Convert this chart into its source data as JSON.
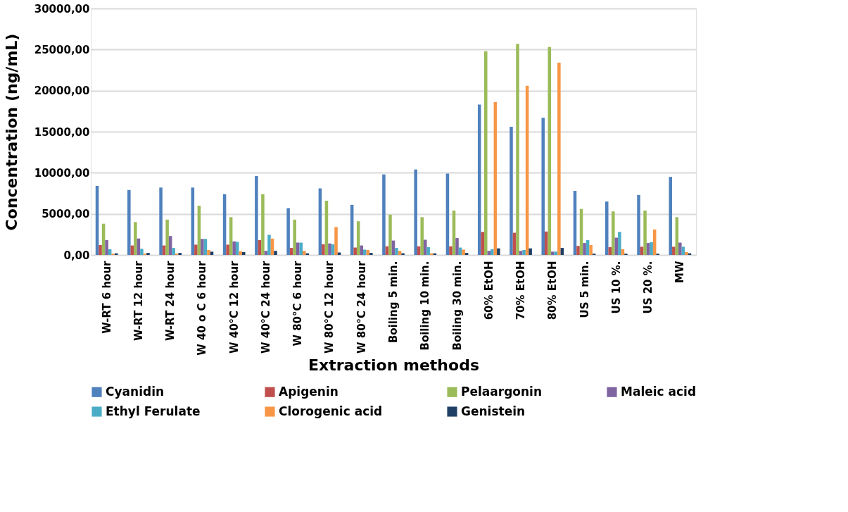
{
  "chart_data": {
    "type": "bar",
    "xlabel": "Extraction methods",
    "ylabel": "Concentration (ng/mL)",
    "categories": [
      "W-RT 6 hour",
      "W-RT 12 hour",
      "W-RT 24 hour",
      "W 40 o C 6 hour",
      "W 40°C 12 hour",
      "W 40°C 24 hour",
      "W 80°C 6 hour",
      "W 80°C 12 hour",
      "W 80°C 24 hour",
      "Boiling 5 min.",
      "Boiling 10 min.",
      "Boiling 30 min.",
      "60% EtOH",
      "70% EtOH",
      "80% EtOH",
      "US 5 min.",
      "US 10 %.",
      "US 20 %.",
      "MW"
    ],
    "series": [
      {
        "name": "Cyanidin",
        "color": "#4f81bd",
        "values": [
          8400,
          7900,
          8200,
          8200,
          7400,
          9600,
          5700,
          8100,
          6100,
          9800,
          10400,
          9900,
          18300,
          15600,
          16700,
          7800,
          6500,
          7300,
          9500
        ]
      },
      {
        "name": "Apigenin",
        "color": "#c0504d",
        "values": [
          1200,
          1150,
          1150,
          1250,
          1250,
          1800,
          850,
          1300,
          900,
          1050,
          1050,
          1050,
          2800,
          2700,
          2850,
          1100,
          950,
          1000,
          1000
        ]
      },
      {
        "name": "Pelaargonin",
        "color": "#9bbb59",
        "values": [
          3800,
          4000,
          4300,
          6000,
          4600,
          7400,
          4300,
          6600,
          4100,
          4900,
          4600,
          5400,
          24800,
          25700,
          25300,
          5600,
          5300,
          5400,
          4600
        ]
      },
      {
        "name": "Maleic acid",
        "color": "#8064a2",
        "values": [
          1800,
          2000,
          2300,
          1950,
          1650,
          500,
          1500,
          1400,
          1150,
          1750,
          1850,
          2050,
          500,
          500,
          400,
          1450,
          2100,
          1450,
          1500
        ]
      },
      {
        "name": "Ethyl Ferulate",
        "color": "#4bacc6",
        "values": [
          700,
          750,
          850,
          1950,
          1600,
          2450,
          1500,
          1300,
          650,
          850,
          950,
          900,
          700,
          600,
          400,
          1800,
          2800,
          1550,
          1000
        ]
      },
      {
        "name": "Clorogenic acid",
        "color": "#f79646",
        "values": [
          150,
          150,
          150,
          600,
          450,
          2000,
          500,
          3400,
          600,
          500,
          200,
          650,
          18600,
          20600,
          23400,
          1200,
          700,
          3100,
          350
        ]
      },
      {
        "name": "Genistein",
        "color": "#1f3f66",
        "values": [
          200,
          250,
          250,
          400,
          350,
          500,
          200,
          300,
          250,
          200,
          200,
          250,
          800,
          800,
          850,
          150,
          150,
          150,
          200
        ]
      }
    ],
    "ylim": [
      0,
      30000
    ],
    "yticks": [
      {
        "value": 0,
        "label": "0,00"
      },
      {
        "value": 5000,
        "label": "5000,00"
      },
      {
        "value": 10000,
        "label": "10000,00"
      },
      {
        "value": 15000,
        "label": "15000,00"
      },
      {
        "value": 20000,
        "label": "20000,00"
      },
      {
        "value": 25000,
        "label": "25000,00"
      },
      {
        "value": 30000,
        "label": "30000,00"
      }
    ],
    "grid": "y",
    "legend": "bottom"
  }
}
